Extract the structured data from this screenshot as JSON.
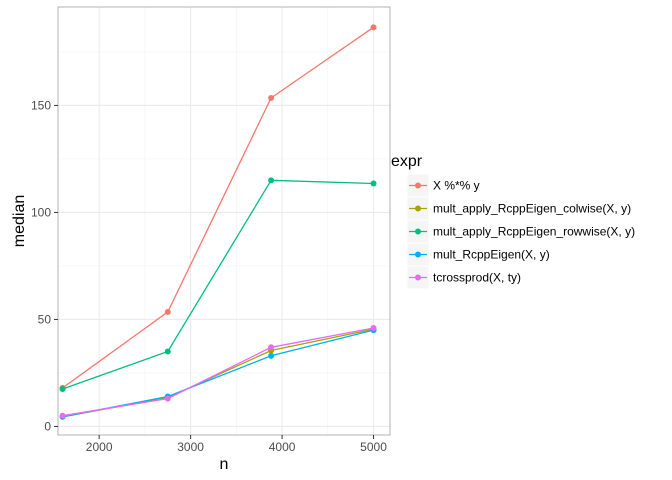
{
  "chart_data": {
    "type": "line",
    "title": "",
    "xlabel": "n",
    "ylabel": "median",
    "xlim": [
      1550,
      5180
    ],
    "ylim": [
      -4,
      196
    ],
    "x_ticks": [
      2000,
      3000,
      4000,
      5000
    ],
    "y_ticks": [
      0,
      50,
      100,
      150
    ],
    "grid": true,
    "legend": {
      "title": "expr",
      "position": "right"
    },
    "x": [
      1600,
      2750,
      3880,
      5000
    ],
    "series": [
      {
        "name": "X %*% y",
        "color": "#F8766D",
        "values": [
          18,
          53.5,
          153.5,
          186.5
        ]
      },
      {
        "name": "mult_apply_RcppEigen_colwise(X, y)",
        "color": "#A3A500",
        "values": [
          4.5,
          13.5,
          35.5,
          45.5
        ]
      },
      {
        "name": "mult_apply_RcppEigen_rowwise(X, y)",
        "color": "#00BF7D",
        "values": [
          17.5,
          35,
          115,
          113.5
        ]
      },
      {
        "name": "mult_RcppEigen(X, y)",
        "color": "#00B0F6",
        "values": [
          4.5,
          14,
          33,
          45
        ]
      },
      {
        "name": "tcrossprod(X, ty)",
        "color": "#E76BF3",
        "values": [
          5,
          13,
          37,
          46
        ]
      }
    ]
  }
}
